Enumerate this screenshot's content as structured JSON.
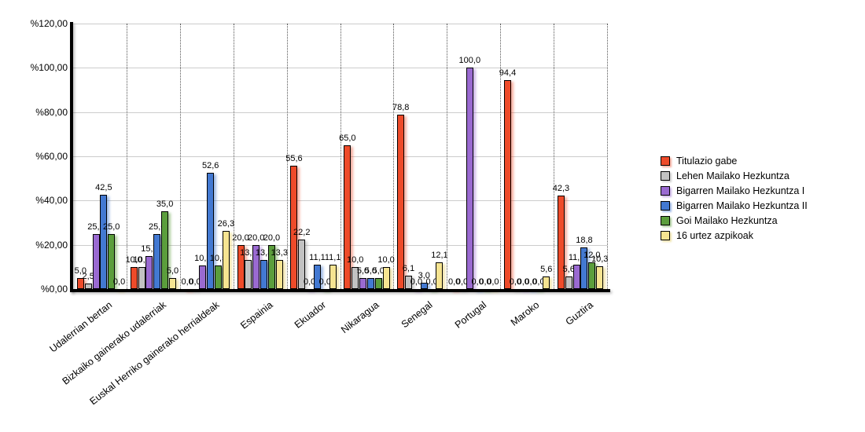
{
  "chart_data": {
    "type": "bar",
    "title": "",
    "xlabel": "",
    "ylabel": "",
    "ylim": [
      0,
      120
    ],
    "grid": true,
    "legend_position": "right",
    "decimal_separator": ",",
    "y_ticks": [
      "%0,00",
      "%20,00",
      "%40,00",
      "%60,00",
      "%80,00",
      "%100,00",
      "%120,00"
    ],
    "categories": [
      "Udalerrian bertan",
      "Bizkaiko gainerako udalerriak",
      "Euskal Herriko gainerako herrialdeak",
      "Espainia",
      "Ekuador",
      "Nikaragua",
      "Senegal",
      "Portugal",
      "Maroko",
      "Guztira"
    ],
    "series": [
      {
        "name": "Titulazio gabe",
        "color": "#ee4b2a",
        "shadow": "rgba(238,75,42,0.45)",
        "values": [
          5.0,
          10.0,
          0.0,
          20.0,
          55.6,
          65.0,
          78.8,
          0.0,
          94.4,
          42.3
        ]
      },
      {
        "name": "Lehen Mailako Hezkuntza",
        "color": "#c2c2c2",
        "shadow": "rgba(150,150,150,0.45)",
        "values": [
          2.5,
          10.0,
          0.0,
          13.3,
          22.2,
          10.0,
          6.1,
          0.0,
          0.0,
          5.6
        ]
      },
      {
        "name": "Bigarren Mailako Hezkuntza I",
        "color": "#9a6ad1",
        "shadow": "rgba(154,106,209,0.5)",
        "values": [
          25.0,
          15.0,
          10.5,
          20.0,
          0.0,
          5.0,
          0.0,
          100.0,
          0.0,
          11.1
        ]
      },
      {
        "name": "Bigarren Mailako Hezkuntza II",
        "color": "#4379d2",
        "shadow": "rgba(67,121,210,0.5)",
        "values": [
          42.5,
          25.0,
          52.6,
          13.3,
          11.1,
          5.0,
          3.0,
          0.0,
          0.0,
          18.8
        ]
      },
      {
        "name": "Goi Mailako Hezkuntza",
        "color": "#5b9e3c",
        "shadow": "rgba(91,158,60,0.5)",
        "values": [
          25.0,
          35.0,
          10.5,
          20.0,
          0.0,
          5.0,
          0.0,
          0.0,
          0.0,
          12.0
        ]
      },
      {
        "name": "16 urtez azpikoak",
        "color": "#f6e491",
        "shadow": "rgba(230,210,120,0.6)",
        "values": [
          0.0,
          5.0,
          26.3,
          13.3,
          11.1,
          10.0,
          12.1,
          0.0,
          5.6,
          10.3
        ]
      }
    ]
  }
}
